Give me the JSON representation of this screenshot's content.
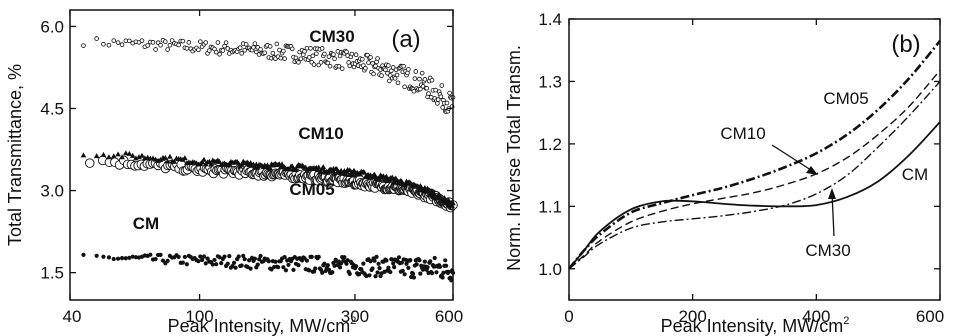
{
  "chart_data": [
    {
      "type": "scatter",
      "panel_label": "(a)",
      "xlabel": "Peak  Intensity, MW/cm",
      "xlabel_sup": "2",
      "ylabel": "Total Transmittance, %",
      "xscale": "log",
      "xlim": [
        40,
        600
      ],
      "ylim": [
        1.0,
        6.3
      ],
      "x_ticks": [
        40,
        100,
        300,
        600
      ],
      "x_tick_labels": [
        "40",
        "100",
        "300",
        "600"
      ],
      "y_ticks": [
        1.5,
        3.0,
        4.5,
        6.0
      ],
      "y_tick_labels": [
        "1.5",
        "3.0",
        "4.5",
        "6.0"
      ],
      "series": [
        {
          "name": "CM30",
          "marker": "small-open-circle",
          "trend": [
            [
              44,
              5.72
            ],
            [
              100,
              5.62
            ],
            [
              200,
              5.5
            ],
            [
              300,
              5.35
            ],
            [
              400,
              5.15
            ],
            [
              500,
              4.9
            ],
            [
              600,
              4.55
            ]
          ],
          "spread": 0.12
        },
        {
          "name": "CM10",
          "marker": "filled-triangle",
          "trend": [
            [
              44,
              3.68
            ],
            [
              100,
              3.52
            ],
            [
              200,
              3.42
            ],
            [
              300,
              3.32
            ],
            [
              400,
              3.18
            ],
            [
              500,
              3.0
            ],
            [
              600,
              2.72
            ]
          ],
          "spread": 0.05
        },
        {
          "name": "CM05",
          "marker": "large-open-circle",
          "trend": [
            [
              46,
              3.55
            ],
            [
              100,
              3.38
            ],
            [
              200,
              3.27
            ],
            [
              300,
              3.15
            ],
            [
              400,
              3.05
            ],
            [
              500,
              2.92
            ],
            [
              600,
              2.72
            ]
          ],
          "spread": 0.06
        },
        {
          "name": "CM",
          "marker": "filled-circle",
          "trend": [
            [
              44,
              1.78
            ],
            [
              100,
              1.72
            ],
            [
              200,
              1.66
            ],
            [
              300,
              1.62
            ],
            [
              400,
              1.6
            ],
            [
              500,
              1.6
            ],
            [
              600,
              1.55
            ]
          ],
          "spread": 0.12
        }
      ]
    },
    {
      "type": "line",
      "panel_label": "(b)",
      "xlabel": "Peak Intensity, MW/cm",
      "xlabel_sup": "2",
      "ylabel": "Norm. Inverse Total Transm.",
      "xlim": [
        0,
        600
      ],
      "ylim": [
        0.95,
        1.4
      ],
      "x_ticks": [
        0,
        200,
        400,
        600
      ],
      "x_tick_labels": [
        "0",
        "200",
        "400",
        "600"
      ],
      "y_ticks": [
        1.0,
        1.1,
        1.2,
        1.3,
        1.4
      ],
      "y_tick_labels": [
        "1.0",
        "1.1",
        "1.2",
        "1.3",
        "1.4"
      ],
      "series": [
        {
          "name": "CM",
          "style": "solid",
          "points": [
            [
              0,
              1.0
            ],
            [
              25,
              1.03
            ],
            [
              50,
              1.06
            ],
            [
              100,
              1.095
            ],
            [
              150,
              1.108
            ],
            [
              200,
              1.108
            ],
            [
              250,
              1.104
            ],
            [
              300,
              1.101
            ],
            [
              350,
              1.1
            ],
            [
              400,
              1.102
            ],
            [
              450,
              1.115
            ],
            [
              500,
              1.14
            ],
            [
              550,
              1.182
            ],
            [
              600,
              1.235
            ]
          ]
        },
        {
          "name": "CM05",
          "style": "dash-dot-bold",
          "points": [
            [
              0,
              1.0
            ],
            [
              25,
              1.03
            ],
            [
              50,
              1.055
            ],
            [
              100,
              1.09
            ],
            [
              150,
              1.105
            ],
            [
              200,
              1.118
            ],
            [
              250,
              1.13
            ],
            [
              300,
              1.145
            ],
            [
              350,
              1.163
            ],
            [
              400,
              1.185
            ],
            [
              450,
              1.215
            ],
            [
              500,
              1.255
            ],
            [
              550,
              1.305
            ],
            [
              600,
              1.365
            ]
          ]
        },
        {
          "name": "CM10",
          "style": "dashed",
          "points": [
            [
              0,
              1.0
            ],
            [
              25,
              1.022
            ],
            [
              50,
              1.045
            ],
            [
              100,
              1.075
            ],
            [
              150,
              1.092
            ],
            [
              200,
              1.104
            ],
            [
              250,
              1.113
            ],
            [
              300,
              1.122
            ],
            [
              350,
              1.135
            ],
            [
              400,
              1.152
            ],
            [
              450,
              1.178
            ],
            [
              500,
              1.215
            ],
            [
              550,
              1.26
            ],
            [
              600,
              1.318
            ]
          ]
        },
        {
          "name": "CM30",
          "style": "dash-dot",
          "points": [
            [
              0,
              1.0
            ],
            [
              25,
              1.02
            ],
            [
              50,
              1.04
            ],
            [
              100,
              1.065
            ],
            [
              150,
              1.075
            ],
            [
              200,
              1.08
            ],
            [
              250,
              1.085
            ],
            [
              300,
              1.092
            ],
            [
              350,
              1.102
            ],
            [
              400,
              1.12
            ],
            [
              450,
              1.15
            ],
            [
              500,
              1.195
            ],
            [
              550,
              1.245
            ],
            [
              600,
              1.3
            ]
          ]
        }
      ]
    }
  ]
}
